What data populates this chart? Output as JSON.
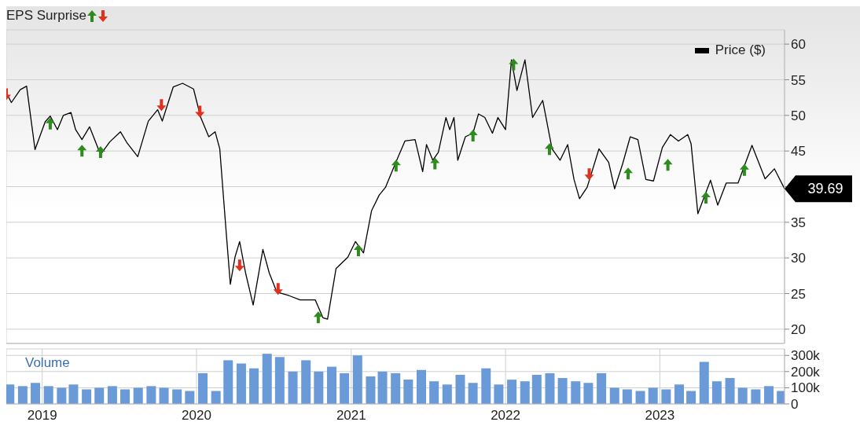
{
  "chart_data": [
    {
      "type": "line",
      "legend_title": "EPS Surprise",
      "legend": "top right",
      "grid": true,
      "tick_labels": "y",
      "xlim": [
        "2018-10-08",
        "2023-10-23"
      ],
      "xticks": [
        {
          "value": "2019-01-01",
          "label": null
        },
        {
          "value": "2020-01-01",
          "label": null
        },
        {
          "value": "2021-01-01",
          "label": null
        },
        {
          "value": "2022-01-01",
          "label": null
        },
        {
          "value": "2023-01-01",
          "label": null
        }
      ],
      "ylim": [
        18,
        62
      ],
      "yticks": [
        20,
        25,
        30,
        35,
        {
          "value": 40,
          "label": null
        },
        45,
        50,
        55,
        60
      ],
      "annotations": [
        {
          "text": "39.69",
          "x": "2023-10-23",
          "y": 39.69
        }
      ],
      "series": [
        {
          "name": "Price ($)",
          "color": "#000000",
          "x": [
            "2018-10-08",
            "2018-10-20",
            "2018-11-10",
            "2018-11-25",
            "2018-12-15",
            "2019-01-08",
            "2019-01-20",
            "2019-02-06",
            "2019-02-20",
            "2019-03-10",
            "2019-03-21",
            "2019-04-05",
            "2019-04-23",
            "2019-05-19",
            "2019-06-10",
            "2019-07-05",
            "2019-07-20",
            "2019-08-15",
            "2019-09-09",
            "2019-10-01",
            "2019-10-12",
            "2019-11-07",
            "2019-11-29",
            "2019-12-25",
            "2020-01-11",
            "2020-01-30",
            "2020-02-14",
            "2020-02-25",
            "2020-03-10",
            "2020-03-21",
            "2020-04-01",
            "2020-04-12",
            "2020-04-26",
            "2020-05-14",
            "2020-06-06",
            "2020-06-21",
            "2020-07-09",
            "2020-08-07",
            "2020-09-02",
            "2020-10-08",
            "2020-10-26",
            "2020-11-06",
            "2020-11-26",
            "2020-12-24",
            "2021-01-11",
            "2021-01-30",
            "2021-02-18",
            "2021-03-08",
            "2021-03-23",
            "2021-04-15",
            "2021-05-08",
            "2021-06-01",
            "2021-06-19",
            "2021-06-28",
            "2021-07-13",
            "2021-07-26",
            "2021-08-13",
            "2021-08-22",
            "2021-09-01",
            "2021-09-10",
            "2021-09-28",
            "2021-10-16",
            "2021-10-29",
            "2021-11-13",
            "2021-12-01",
            "2021-12-14",
            "2022-01-01",
            "2022-01-15",
            "2022-01-28",
            "2022-02-16",
            "2022-03-06",
            "2022-03-30",
            "2022-04-21",
            "2022-05-10",
            "2022-05-28",
            "2022-06-12",
            "2022-06-25",
            "2022-07-13",
            "2022-08-10",
            "2022-09-02",
            "2022-09-16",
            "2022-10-05",
            "2022-10-23",
            "2022-11-10",
            "2022-11-29",
            "2022-12-17",
            "2023-01-07",
            "2023-01-26",
            "2023-02-14",
            "2023-03-08",
            "2023-03-16",
            "2023-04-01",
            "2023-05-01",
            "2023-05-18",
            "2023-06-07",
            "2023-07-05",
            "2023-08-07",
            "2023-09-07",
            "2023-09-29",
            "2023-10-23"
          ],
          "values": [
            53.2,
            51.8,
            53.6,
            54.1,
            45.2,
            49.1,
            49.9,
            48,
            50,
            50.4,
            48,
            46.6,
            48.4,
            44.5,
            46.3,
            47.7,
            46.2,
            44.2,
            49.2,
            50.8,
            49.2,
            54,
            54.5,
            53.7,
            49.7,
            47,
            47.7,
            45.3,
            34.5,
            26.3,
            30.1,
            32.3,
            27.9,
            23.4,
            31.2,
            27.9,
            25.2,
            24.7,
            24.1,
            24.1,
            21.6,
            21.4,
            28.5,
            30.1,
            32.3,
            30.7,
            36.6,
            38.8,
            39.9,
            43.2,
            46.4,
            46.6,
            42.1,
            45.9,
            43.7,
            44.8,
            49.7,
            48,
            49.7,
            43.7,
            47,
            47.5,
            50.2,
            49.7,
            47.5,
            49.7,
            48,
            57.8,
            53.5,
            57.8,
            49.7,
            52.1,
            45.3,
            43.7,
            45.9,
            41,
            38.3,
            39.9,
            45.3,
            43.4,
            39.7,
            43.2,
            47,
            46.6,
            41,
            40.8,
            45.5,
            47.3,
            46.4,
            47.3,
            46,
            36.2,
            40.9,
            37.4,
            40.5,
            40.5,
            45.8,
            41.1,
            42.5,
            39.7
          ]
        },
        {
          "type": "scatter",
          "color": "#2e8b1e",
          "marker": "triangle",
          "x": [
            "2019-01-20",
            "2019-04-05",
            "2019-05-19",
            "2020-10-15",
            "2021-01-18",
            "2021-04-17",
            "2021-07-18",
            "2021-10-16",
            "2022-01-20",
            "2022-04-15",
            "2022-10-18",
            "2023-01-20",
            "2023-04-20",
            "2023-07-20"
          ],
          "values": [
            48.8,
            45,
            44.8,
            21.6,
            31,
            42.9,
            43.2,
            47.1,
            57.1,
            45.2,
            41.8,
            43,
            38.4,
            42.3
          ]
        },
        {
          "type": "scatter",
          "color": "#e0301e",
          "marker": "triangle-down",
          "x": [
            "2018-10-08",
            "2019-10-10",
            "2020-01-09",
            "2020-04-12",
            "2020-07-12",
            "2022-07-18"
          ],
          "values": [
            53,
            51.5,
            50.6,
            29,
            25.7,
            41.8
          ]
        }
      ]
    },
    {
      "type": "bar",
      "ylabel": "Volume",
      "grid": true,
      "color": "#6a9ad8",
      "xlim": [
        "2018-10-08",
        "2023-10-23"
      ],
      "xticks": [
        {
          "value": "2019-01-01",
          "label": "2019"
        },
        {
          "value": "2020-01-01",
          "label": "2020"
        },
        {
          "value": "2021-01-01",
          "label": "2021"
        },
        {
          "value": "2022-01-01",
          "label": "2022"
        },
        {
          "value": "2023-01-01",
          "label": "2023"
        }
      ],
      "ylim": [
        0,
        340000
      ],
      "yticks": [
        {
          "value": 0,
          "label": "0"
        },
        {
          "value": 100000,
          "label": "100k"
        },
        {
          "value": 200000,
          "label": "200k"
        },
        {
          "value": 300000,
          "label": "300k"
        }
      ],
      "x": [
        "2018-10-15",
        "2018-11-15",
        "2018-12-15",
        "2019-01-15",
        "2019-02-15",
        "2019-03-15",
        "2019-04-15",
        "2019-05-15",
        "2019-06-15",
        "2019-07-15",
        "2019-08-15",
        "2019-09-15",
        "2019-10-15",
        "2019-11-15",
        "2019-12-15",
        "2020-01-15",
        "2020-02-15",
        "2020-03-15",
        "2020-04-15",
        "2020-05-15",
        "2020-06-15",
        "2020-07-15",
        "2020-08-15",
        "2020-09-15",
        "2020-10-15",
        "2020-11-15",
        "2020-12-15",
        "2021-01-15",
        "2021-02-15",
        "2021-03-15",
        "2021-04-15",
        "2021-05-15",
        "2021-06-15",
        "2021-07-15",
        "2021-08-15",
        "2021-09-15",
        "2021-10-15",
        "2021-11-15",
        "2021-12-15",
        "2022-01-15",
        "2022-02-15",
        "2022-03-15",
        "2022-04-15",
        "2022-05-15",
        "2022-06-15",
        "2022-07-15",
        "2022-08-15",
        "2022-09-15",
        "2022-10-15",
        "2022-11-15",
        "2022-12-15",
        "2023-01-15",
        "2023-02-15",
        "2023-03-15",
        "2023-04-15",
        "2023-05-15",
        "2023-06-15",
        "2023-07-15",
        "2023-08-15",
        "2023-09-15",
        "2023-10-15"
      ],
      "values": [
        120000,
        110000,
        130000,
        110000,
        100000,
        120000,
        90000,
        100000,
        110000,
        90000,
        100000,
        110000,
        100000,
        90000,
        80000,
        190000,
        80000,
        270000,
        250000,
        220000,
        310000,
        290000,
        200000,
        270000,
        200000,
        230000,
        190000,
        300000,
        170000,
        200000,
        190000,
        150000,
        210000,
        140000,
        120000,
        180000,
        130000,
        220000,
        120000,
        150000,
        140000,
        180000,
        190000,
        160000,
        140000,
        130000,
        190000,
        100000,
        90000,
        80000,
        100000,
        90000,
        120000,
        80000,
        260000,
        140000,
        160000,
        100000,
        90000,
        110000,
        80000
      ]
    }
  ]
}
